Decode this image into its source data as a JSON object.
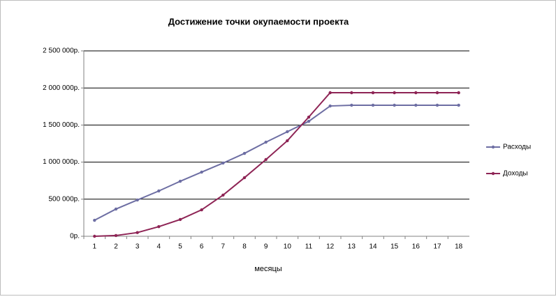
{
  "chart_data": {
    "type": "line",
    "title": "Достижение точки окупаемости проекта",
    "x_label": "месяцы",
    "categories": [
      "1",
      "2",
      "3",
      "4",
      "5",
      "6",
      "7",
      "8",
      "9",
      "10",
      "11",
      "12",
      "13",
      "14",
      "15",
      "16",
      "17",
      "18"
    ],
    "series": [
      {
        "name": "Расходы",
        "color": "#6d6ea3",
        "values": [
          216000,
          367000,
          489000,
          611000,
          742000,
          865000,
          987000,
          1118000,
          1269000,
          1410000,
          1550000,
          1757000,
          1767000,
          1767000,
          1767000,
          1767000,
          1767000,
          1767000
        ]
      },
      {
        "name": "Доходы",
        "color": "#8e2455",
        "values": [
          0,
          10000,
          50000,
          130000,
          226000,
          357000,
          555000,
          790000,
          1034000,
          1288000,
          1607000,
          1936000,
          1936000,
          1936000,
          1936000,
          1936000,
          1936000,
          1936000
        ]
      }
    ],
    "ylim": [
      0,
      2500000
    ],
    "yticks": [
      {
        "value": 0,
        "label": "0р."
      },
      {
        "value": 500000,
        "label": "500 000р."
      },
      {
        "value": 1000000,
        "label": "1 000 000р."
      },
      {
        "value": 1500000,
        "label": "1 500 000р."
      },
      {
        "value": 2000000,
        "label": "2 000 000р."
      },
      {
        "value": 2500000,
        "label": "2 500 000р."
      }
    ],
    "grid": true
  }
}
